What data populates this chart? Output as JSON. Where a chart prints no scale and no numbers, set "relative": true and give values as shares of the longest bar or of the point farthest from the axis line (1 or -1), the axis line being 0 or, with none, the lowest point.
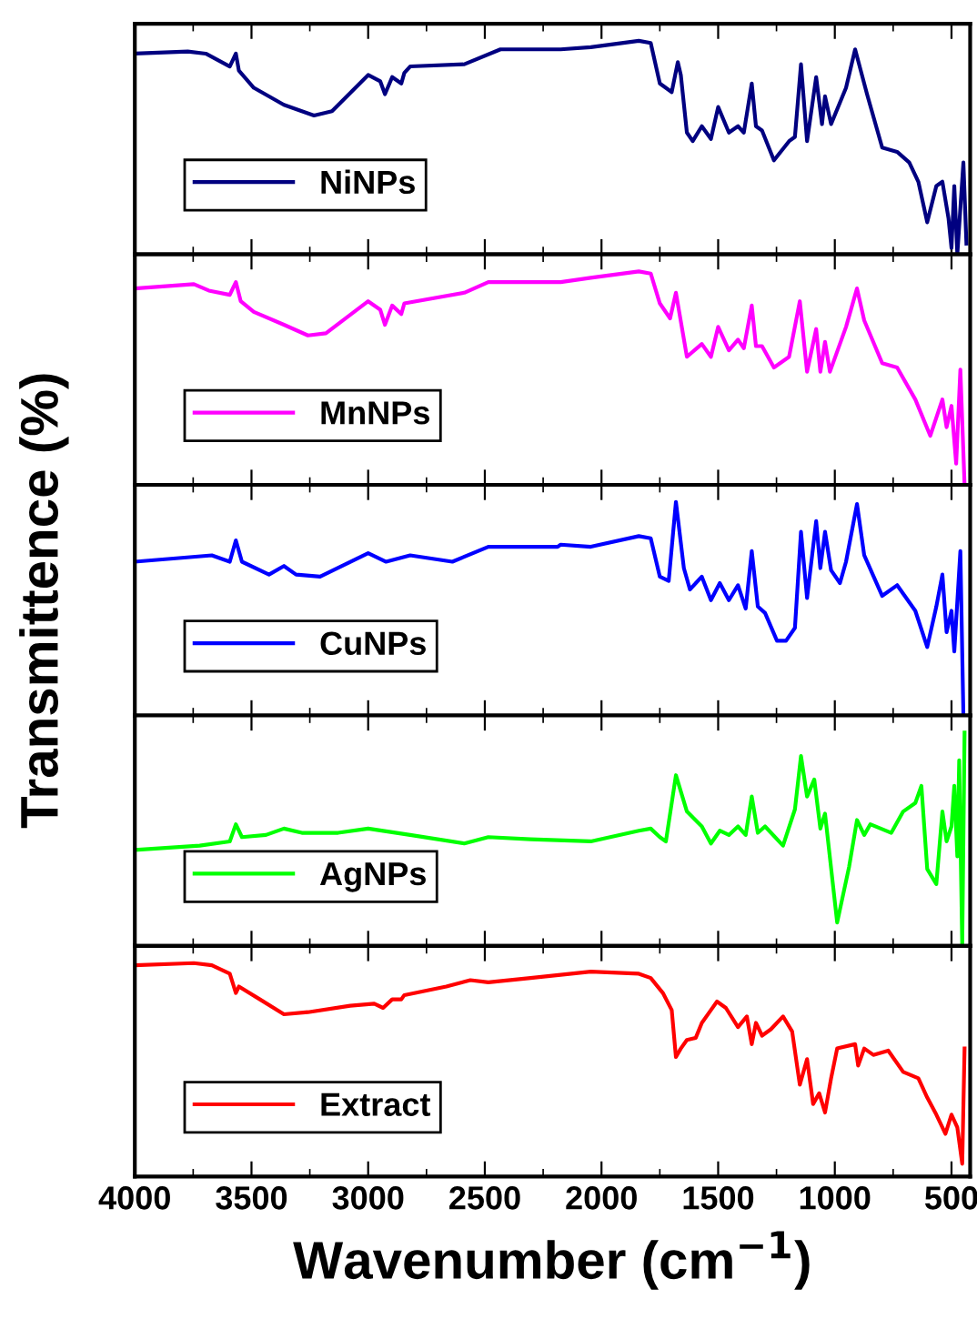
{
  "chart_data": [
    {
      "type": "line",
      "relative": true,
      "xlim": [
        4000,
        420
      ],
      "xticks": [
        4000,
        3500,
        3000,
        2500,
        2000,
        1500,
        1000,
        500
      ],
      "tick_labels": false,
      "legend": "lower left",
      "x": [
        4000,
        3773,
        3696,
        3593,
        3567,
        3554,
        3490,
        3361,
        3232,
        3155,
        3000,
        2948,
        2928,
        2897,
        2858,
        2845,
        2820,
        2588,
        2433,
        2175,
        2046,
        1840,
        1789,
        1750,
        1699,
        1673,
        1660,
        1634,
        1609,
        1570,
        1531,
        1500,
        1454,
        1415,
        1390,
        1356,
        1338,
        1312,
        1261,
        1196,
        1171,
        1145,
        1119,
        1080,
        1055,
        1042,
        1016,
        952,
        913,
        862,
        797,
        733,
        681,
        642,
        604,
        565,
        539,
        513,
        500,
        488,
        475,
        449,
        436
      ],
      "series": [
        {
          "name": "NiNPs",
          "color": "#000080",
          "values": [
            0.94,
            0.95,
            0.94,
            0.88,
            0.94,
            0.86,
            0.78,
            0.7,
            0.65,
            0.67,
            0.84,
            0.81,
            0.75,
            0.83,
            0.8,
            0.85,
            0.88,
            0.89,
            0.96,
            0.96,
            0.97,
            1.0,
            0.99,
            0.8,
            0.76,
            0.9,
            0.84,
            0.57,
            0.53,
            0.6,
            0.54,
            0.69,
            0.57,
            0.6,
            0.57,
            0.8,
            0.6,
            0.58,
            0.44,
            0.53,
            0.55,
            0.89,
            0.53,
            0.83,
            0.61,
            0.74,
            0.61,
            0.78,
            0.96,
            0.75,
            0.5,
            0.48,
            0.43,
            0.34,
            0.15,
            0.32,
            0.34,
            0.17,
            0.03,
            0.32,
            0,
            0.43,
            0.05
          ]
        }
      ]
    },
    {
      "type": "line",
      "relative": true,
      "xlim": [
        4000,
        420
      ],
      "xticks": [
        4000,
        3500,
        3000,
        2500,
        2000,
        1500,
        1000,
        500
      ],
      "tick_labels": false,
      "legend": "lower left",
      "x": [
        4000,
        3747,
        3683,
        3593,
        3567,
        3546,
        3490,
        3361,
        3258,
        3181,
        3000,
        2948,
        2928,
        2897,
        2858,
        2845,
        2588,
        2485,
        2175,
        2046,
        1840,
        1789,
        1750,
        1706,
        1681,
        1634,
        1570,
        1531,
        1500,
        1454,
        1415,
        1390,
        1356,
        1338,
        1312,
        1261,
        1196,
        1150,
        1119,
        1080,
        1062,
        1042,
        1021,
        952,
        905,
        874,
        797,
        733,
        655,
        591,
        539,
        521,
        500,
        480,
        462,
        444
      ],
      "series": [
        {
          "name": "MnNPs",
          "color": "#ff00ff",
          "values": [
            0.92,
            0.94,
            0.91,
            0.89,
            0.95,
            0.86,
            0.81,
            0.75,
            0.7,
            0.71,
            0.86,
            0.82,
            0.75,
            0.84,
            0.8,
            0.85,
            0.9,
            0.95,
            0.95,
            0.97,
            1.0,
            0.99,
            0.85,
            0.78,
            0.9,
            0.6,
            0.66,
            0.6,
            0.74,
            0.63,
            0.68,
            0.64,
            0.84,
            0.65,
            0.65,
            0.55,
            0.6,
            0.86,
            0.53,
            0.73,
            0.53,
            0.67,
            0.53,
            0.74,
            0.92,
            0.77,
            0.57,
            0.55,
            0.4,
            0.23,
            0.4,
            0.27,
            0.37,
            0.1,
            0.54,
            0
          ]
        }
      ]
    },
    {
      "type": "line",
      "relative": true,
      "xlim": [
        4000,
        420
      ],
      "xticks": [
        4000,
        3500,
        3000,
        2500,
        2000,
        1500,
        1000,
        500
      ],
      "tick_labels": false,
      "legend": "lower left",
      "ylabel": "Transmittence (%)",
      "x": [
        4000,
        3670,
        3593,
        3567,
        3541,
        3425,
        3361,
        3309,
        3206,
        3000,
        2923,
        2820,
        2639,
        2485,
        2188,
        2175,
        2046,
        1840,
        1789,
        1750,
        1712,
        1681,
        1647,
        1621,
        1570,
        1531,
        1493,
        1454,
        1415,
        1382,
        1356,
        1330,
        1299,
        1248,
        1209,
        1171,
        1145,
        1119,
        1080,
        1062,
        1042,
        1016,
        978,
        952,
        905,
        874,
        797,
        733,
        655,
        604,
        565,
        539,
        521,
        500,
        488,
        462,
        449
      ],
      "series": [
        {
          "name": "CuNPs",
          "color": "#0000ff",
          "values": [
            0.72,
            0.75,
            0.72,
            0.82,
            0.72,
            0.66,
            0.7,
            0.66,
            0.65,
            0.76,
            0.72,
            0.75,
            0.72,
            0.79,
            0.79,
            0.8,
            0.79,
            0.84,
            0.83,
            0.65,
            0.63,
            1.0,
            0.69,
            0.59,
            0.65,
            0.54,
            0.62,
            0.54,
            0.61,
            0.5,
            0.77,
            0.51,
            0.48,
            0.35,
            0.35,
            0.41,
            0.86,
            0.55,
            0.91,
            0.69,
            0.86,
            0.68,
            0.62,
            0.72,
            0.99,
            0.75,
            0.56,
            0.61,
            0.49,
            0.32,
            0.51,
            0.66,
            0.39,
            0.49,
            0.3,
            0.77,
            0
          ]
        }
      ]
    },
    {
      "type": "line",
      "relative": true,
      "xlim": [
        4000,
        420
      ],
      "xticks": [
        4000,
        3500,
        3000,
        2500,
        2000,
        1500,
        1000,
        500
      ],
      "tick_labels": false,
      "legend": "lower left",
      "x": [
        4000,
        3722,
        3593,
        3567,
        3541,
        3438,
        3361,
        3284,
        3129,
        3000,
        2820,
        2588,
        2485,
        2304,
        2046,
        1840,
        1789,
        1750,
        1724,
        1681,
        1634,
        1570,
        1531,
        1493,
        1454,
        1415,
        1382,
        1356,
        1330,
        1299,
        1222,
        1171,
        1145,
        1119,
        1088,
        1062,
        1042,
        990,
        939,
        905,
        874,
        848,
        758,
        707,
        655,
        629,
        604,
        565,
        539,
        521,
        500,
        488,
        475,
        467,
        454,
        444
      ],
      "series": [
        {
          "name": "AgNPs",
          "color": "#00ff00",
          "values": [
            0.45,
            0.47,
            0.49,
            0.57,
            0.51,
            0.52,
            0.55,
            0.53,
            0.53,
            0.55,
            0.52,
            0.48,
            0.51,
            0.5,
            0.49,
            0.54,
            0.55,
            0.51,
            0.49,
            0.8,
            0.63,
            0.56,
            0.48,
            0.54,
            0.52,
            0.56,
            0.52,
            0.7,
            0.53,
            0.56,
            0.47,
            0.64,
            0.89,
            0.7,
            0.78,
            0.55,
            0.62,
            0.11,
            0.37,
            0.59,
            0.52,
            0.57,
            0.53,
            0.63,
            0.67,
            0.75,
            0.36,
            0.29,
            0.63,
            0.49,
            0.56,
            0.75,
            0.42,
            0.87,
            0,
            1.0
          ]
        }
      ]
    },
    {
      "type": "line",
      "relative": true,
      "xlim": [
        4000,
        420
      ],
      "xticks": [
        4000,
        3500,
        3000,
        2500,
        2000,
        1500,
        1000,
        500
      ],
      "tick_labels": "x",
      "legend": "lower left",
      "xlabel": "Wavenumber (cm$^{−1}$)",
      "x": [
        4000,
        3747,
        3670,
        3593,
        3567,
        3554,
        3464,
        3361,
        3258,
        3077,
        2974,
        2936,
        2897,
        2858,
        2845,
        2665,
        2562,
        2485,
        2304,
        2046,
        1840,
        1789,
        1737,
        1699,
        1681,
        1660,
        1634,
        1596,
        1570,
        1531,
        1505,
        1467,
        1415,
        1377,
        1356,
        1338,
        1312,
        1274,
        1222,
        1183,
        1150,
        1119,
        1093,
        1067,
        1042,
        1016,
        990,
        913,
        900,
        874,
        835,
        771,
        707,
        642,
        604,
        565,
        526,
        500,
        475,
        454,
        444
      ],
      "series": [
        {
          "name": "Extract",
          "color": "#ff0000",
          "values": [
            0.99,
            1.0,
            0.99,
            0.95,
            0.86,
            0.89,
            0.83,
            0.76,
            0.77,
            0.8,
            0.81,
            0.79,
            0.83,
            0.83,
            0.85,
            0.89,
            0.92,
            0.91,
            0.93,
            0.96,
            0.95,
            0.93,
            0.86,
            0.78,
            0.56,
            0.6,
            0.64,
            0.65,
            0.72,
            0.78,
            0.82,
            0.79,
            0.7,
            0.75,
            0.62,
            0.72,
            0.66,
            0.69,
            0.75,
            0.68,
            0.43,
            0.55,
            0.34,
            0.39,
            0.3,
            0.46,
            0.6,
            0.62,
            0.52,
            0.6,
            0.57,
            0.59,
            0.49,
            0.46,
            0.37,
            0.29,
            0.2,
            0.29,
            0.23,
            0.06,
            0.6
          ]
        }
      ]
    }
  ]
}
